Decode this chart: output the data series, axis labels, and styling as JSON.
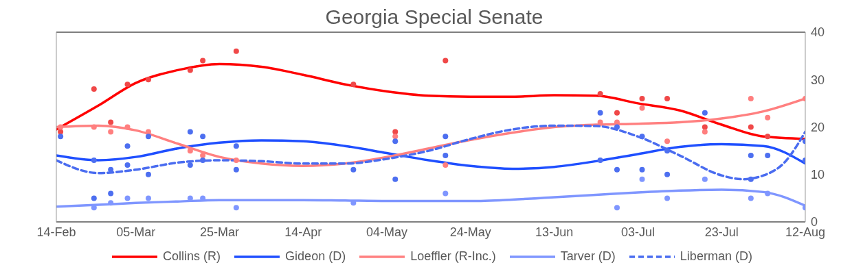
{
  "chart_data": {
    "type": "line",
    "title": "Georgia Special Senate",
    "legend": "bottom",
    "grid": false,
    "x": [
      "--02-14",
      "--02-24",
      "--03-05",
      "--03-15",
      "--03-25",
      "--04-04",
      "--04-14",
      "--04-24",
      "--05-04",
      "--05-14",
      "--05-24",
      "--06-03",
      "--06-13",
      "--06-23",
      "--07-03",
      "--07-13",
      "--07-23",
      "--08-02",
      "--08-12"
    ],
    "xlim": [
      "--02-14",
      "--08-12"
    ],
    "xticks": [
      {
        "value": "--02-14",
        "label": "14-Feb"
      },
      {
        "value": "--03-05",
        "label": "05-Mar"
      },
      {
        "value": "--03-25",
        "label": "25-Mar"
      },
      {
        "value": "--04-14",
        "label": "14-Apr"
      },
      {
        "value": "--05-04",
        "label": "04-May"
      },
      {
        "value": "--05-24",
        "label": "24-May"
      },
      {
        "value": "--06-13",
        "label": "13-Jun"
      },
      {
        "value": "--07-03",
        "label": "03-Jul"
      },
      {
        "value": "--07-23",
        "label": "23-Jul"
      },
      {
        "value": "--08-12",
        "label": "12-Aug"
      }
    ],
    "ylim": [
      0,
      40
    ],
    "yticks": [
      0,
      10,
      20,
      30,
      40
    ],
    "series": [
      {
        "type": "line",
        "name": "Collins (R)",
        "color": "#ff0000",
        "marker": "none",
        "line_style": "solid",
        "values": [
          19.5,
          24.5,
          29.3,
          32,
          33.3,
          32.7,
          31,
          29,
          27.5,
          26.6,
          26.4,
          26.4,
          26.7,
          26.6,
          25,
          23.5,
          20.5,
          18,
          17.5
        ]
      },
      {
        "type": "line",
        "name": "Gideon (D)",
        "color": "#1f4fff",
        "marker": "none",
        "line_style": "solid",
        "values": [
          14,
          13,
          13.7,
          15.5,
          16.7,
          17.2,
          17,
          16,
          14.5,
          13,
          11.8,
          11.2,
          11.6,
          12.8,
          14.3,
          15.8,
          16.4,
          16,
          12.3
        ]
      },
      {
        "type": "line",
        "name": "Loeffler (R-Inc.)",
        "color": "#ff8080",
        "marker": "none",
        "line_style": "solid",
        "values": [
          20,
          20.3,
          19.3,
          16.5,
          13.7,
          12.3,
          11.8,
          12.3,
          13.7,
          15.5,
          17.3,
          18.8,
          20,
          20.5,
          20.7,
          21,
          21.8,
          23.3,
          26
        ]
      },
      {
        "type": "line",
        "name": "Tarver (D)",
        "color": "#7f96ff",
        "marker": "none",
        "line_style": "solid",
        "values": [
          3.2,
          3.6,
          4,
          4.3,
          4.6,
          4.6,
          4.6,
          4.5,
          4.4,
          4.4,
          4.4,
          4.7,
          5.2,
          5.7,
          6.2,
          6.6,
          6.8,
          6.3,
          3.4
        ]
      },
      {
        "type": "line",
        "name": "Liberman (D)",
        "color": "#4a6cf0",
        "marker": "none",
        "line_style": "dashed",
        "x": [
          "--02-14",
          "--02-24",
          "--03-05",
          "--03-15",
          "--03-25",
          "--04-04",
          "--04-14",
          "--04-24",
          "--05-04",
          "--05-14",
          "--05-24",
          "--06-03",
          "--06-13",
          "--06-23",
          "--07-03",
          "--07-13",
          "--07-23",
          "--07-28",
          "--08-02",
          "--08-07",
          "--08-12"
        ],
        "values": [
          13,
          10.3,
          11,
          12.5,
          13,
          12.8,
          12.3,
          12.3,
          13.3,
          15,
          17.5,
          19.5,
          20.3,
          20.2,
          18,
          14,
          9.8,
          9,
          9.8,
          12.5,
          19
        ]
      },
      {
        "type": "scatter",
        "color": "#f04848",
        "marker": "circle",
        "x": [
          "--02-15",
          "--02-23",
          "--02-27",
          "--03-03",
          "--03-08",
          "--03-18",
          "--03-21",
          "--03-29",
          "--04-26",
          "--05-06",
          "--05-18",
          "--06-24",
          "--06-28",
          "--07-04",
          "--07-10",
          "--07-19",
          "--07-30",
          "--08-03"
        ],
        "values": [
          19,
          28,
          21,
          29,
          30,
          32,
          34,
          36,
          29,
          19,
          34,
          27,
          23,
          26,
          26,
          20,
          20,
          18
        ]
      },
      {
        "type": "scatter",
        "color": "#ff7f7f",
        "marker": "circle",
        "x": [
          "--02-15",
          "--02-23",
          "--02-27",
          "--03-03",
          "--03-08",
          "--03-18",
          "--03-21",
          "--03-29",
          "--05-06",
          "--05-18",
          "--06-24",
          "--06-28",
          "--07-04",
          "--07-10",
          "--07-19",
          "--07-30",
          "--08-03",
          "--08-12"
        ],
        "values": [
          20,
          20,
          19,
          20,
          19,
          15,
          14,
          13,
          18,
          12,
          21,
          21,
          24,
          17,
          19,
          26,
          22,
          26
        ]
      },
      {
        "type": "scatter",
        "color": "#4d6ff0",
        "marker": "circle",
        "x": [
          "--02-15",
          "--02-23",
          "--02-23",
          "--02-27",
          "--02-27",
          "--03-03",
          "--03-03",
          "--03-08",
          "--03-08",
          "--03-18",
          "--03-18",
          "--03-21",
          "--03-21",
          "--03-29",
          "--03-29",
          "--04-26",
          "--05-06",
          "--05-06",
          "--05-18",
          "--05-18",
          "--06-24",
          "--06-24",
          "--06-28",
          "--06-28",
          "--07-04",
          "--07-04",
          "--07-10",
          "--07-10",
          "--07-19",
          "--07-30",
          "--07-30",
          "--08-03",
          "--08-12",
          "--08-12"
        ],
        "values": [
          18,
          13,
          5,
          11,
          6,
          16,
          12,
          18,
          10,
          19,
          12,
          18,
          13,
          16,
          11,
          11,
          17,
          9,
          18,
          14,
          23,
          13,
          20,
          11,
          18,
          11,
          15,
          10,
          23,
          14,
          9,
          14,
          17,
          13
        ]
      },
      {
        "type": "scatter",
        "color": "#7f96ff",
        "marker": "circle",
        "x": [
          "--02-23",
          "--02-27",
          "--03-03",
          "--03-08",
          "--03-18",
          "--03-21",
          "--03-29",
          "--04-26",
          "--05-18",
          "--06-28",
          "--07-04",
          "--07-10",
          "--07-19",
          "--07-30",
          "--08-03",
          "--08-12"
        ],
        "values": [
          3,
          4,
          5,
          5,
          5,
          5,
          3,
          4,
          6,
          3,
          9,
          5,
          9,
          5,
          6,
          3
        ]
      }
    ]
  }
}
